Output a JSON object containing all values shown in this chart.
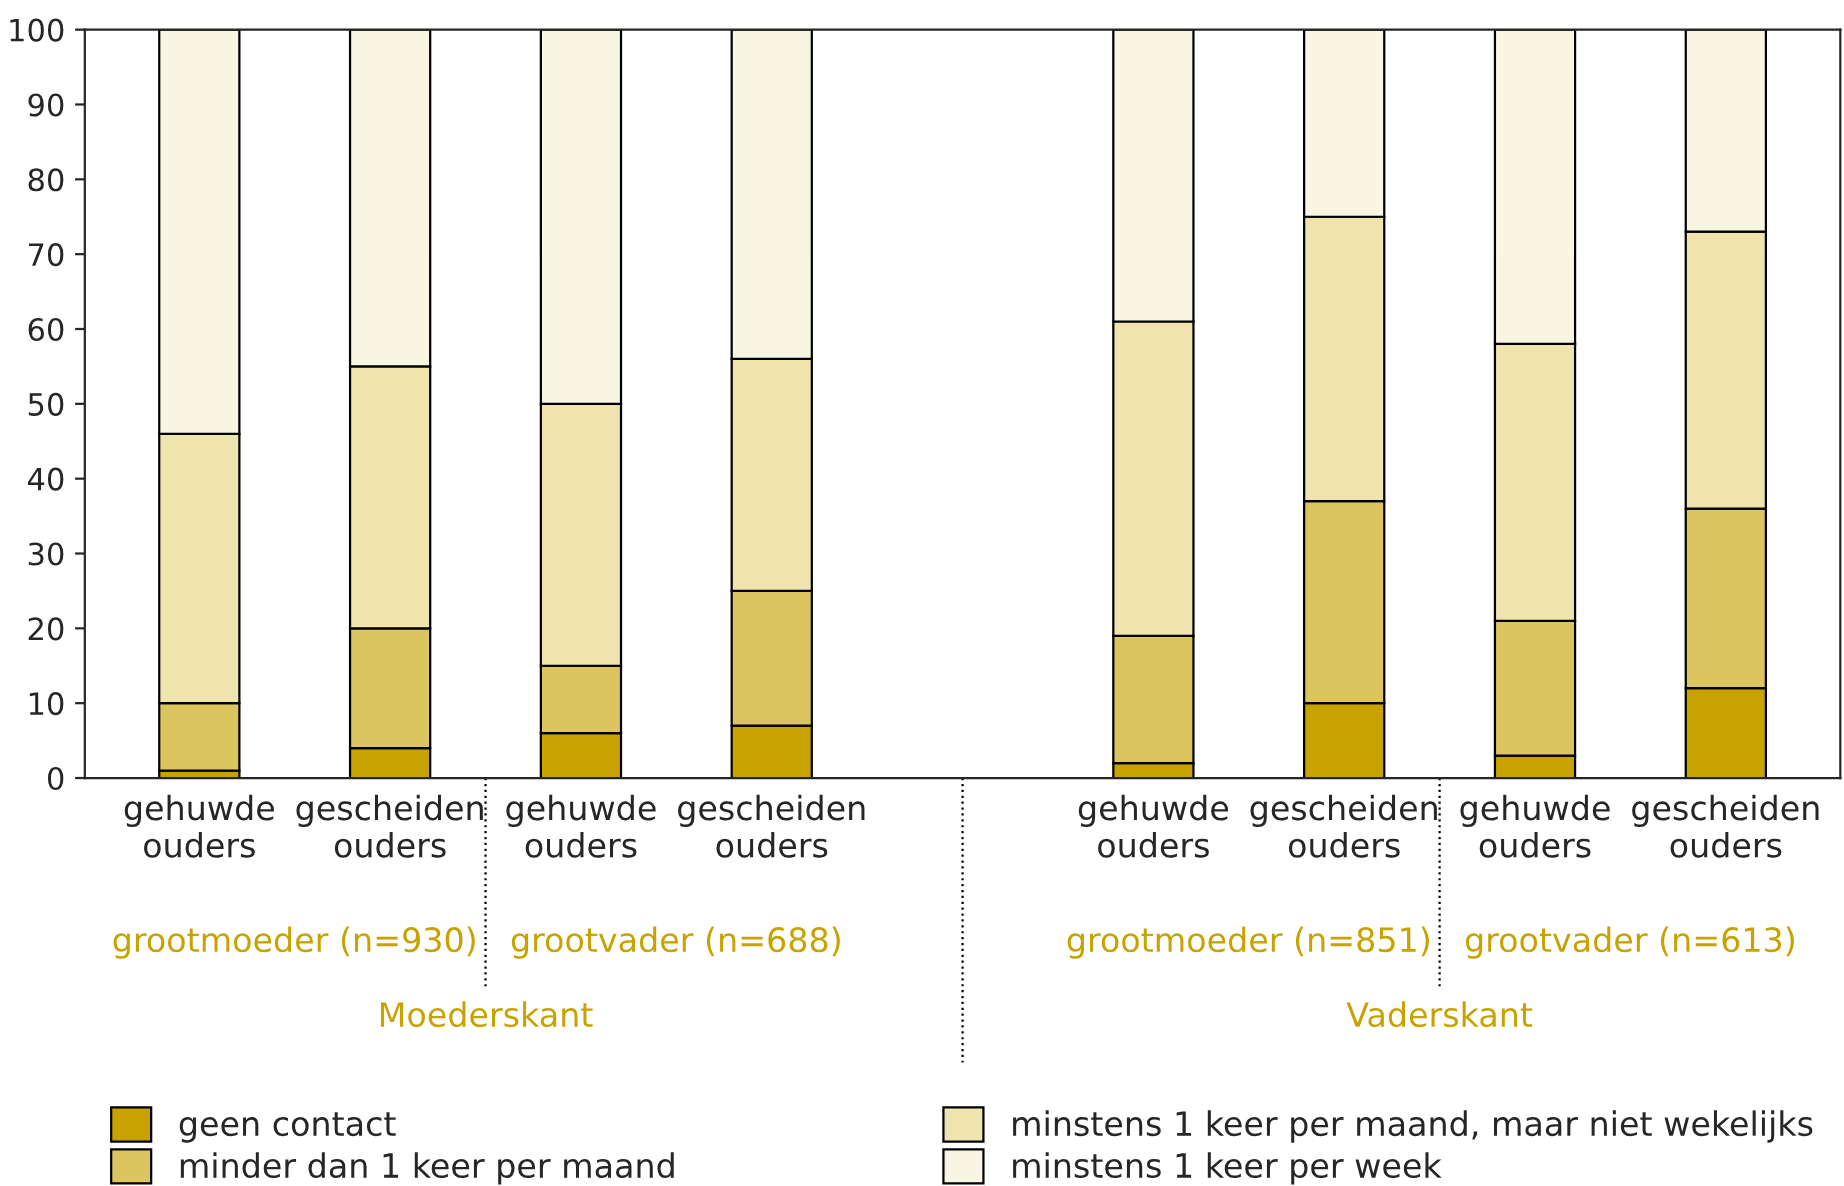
{
  "chart_data": {
    "type": "bar",
    "stacked": true,
    "categories": [
      "gehuwde\nouders",
      "gescheiden\nouders",
      "gehuwde\nouders",
      "gescheiden\nouders",
      null,
      "gehuwde\nouders",
      "gescheiden\nouders",
      "gehuwde\nouders",
      "gescheiden\nouders"
    ],
    "series": [
      {
        "name": "geen contact",
        "color": "#c8a200",
        "values": [
          1,
          4,
          6,
          7,
          null,
          2,
          10,
          3,
          12
        ]
      },
      {
        "name": "minder dan 1 keer per maand",
        "color": "#dcc55e",
        "values": [
          9,
          16,
          9,
          18,
          null,
          17,
          27,
          18,
          24
        ]
      },
      {
        "name": "minstens 1 keer per maand, maar niet wekelijks",
        "color": "#efe3ae",
        "values": [
          36,
          35,
          35,
          31,
          null,
          42,
          38,
          37,
          37
        ]
      },
      {
        "name": "minstens 1 keer per week",
        "color": "#f9f5e3",
        "values": [
          54,
          45,
          50,
          44,
          null,
          39,
          25,
          42,
          27
        ]
      }
    ],
    "ylim": [
      0,
      100
    ],
    "yticks": [
      0,
      10,
      20,
      30,
      40,
      50,
      60,
      70,
      80,
      90,
      100
    ],
    "grid": false,
    "legend": "bottom",
    "annotations": [
      "grootmoeder (n=930)",
      "grootvader (n=688)",
      "grootmoeder (n=851)",
      "grootvader (n=613)",
      "Moederskant",
      "Vaderskant"
    ]
  }
}
